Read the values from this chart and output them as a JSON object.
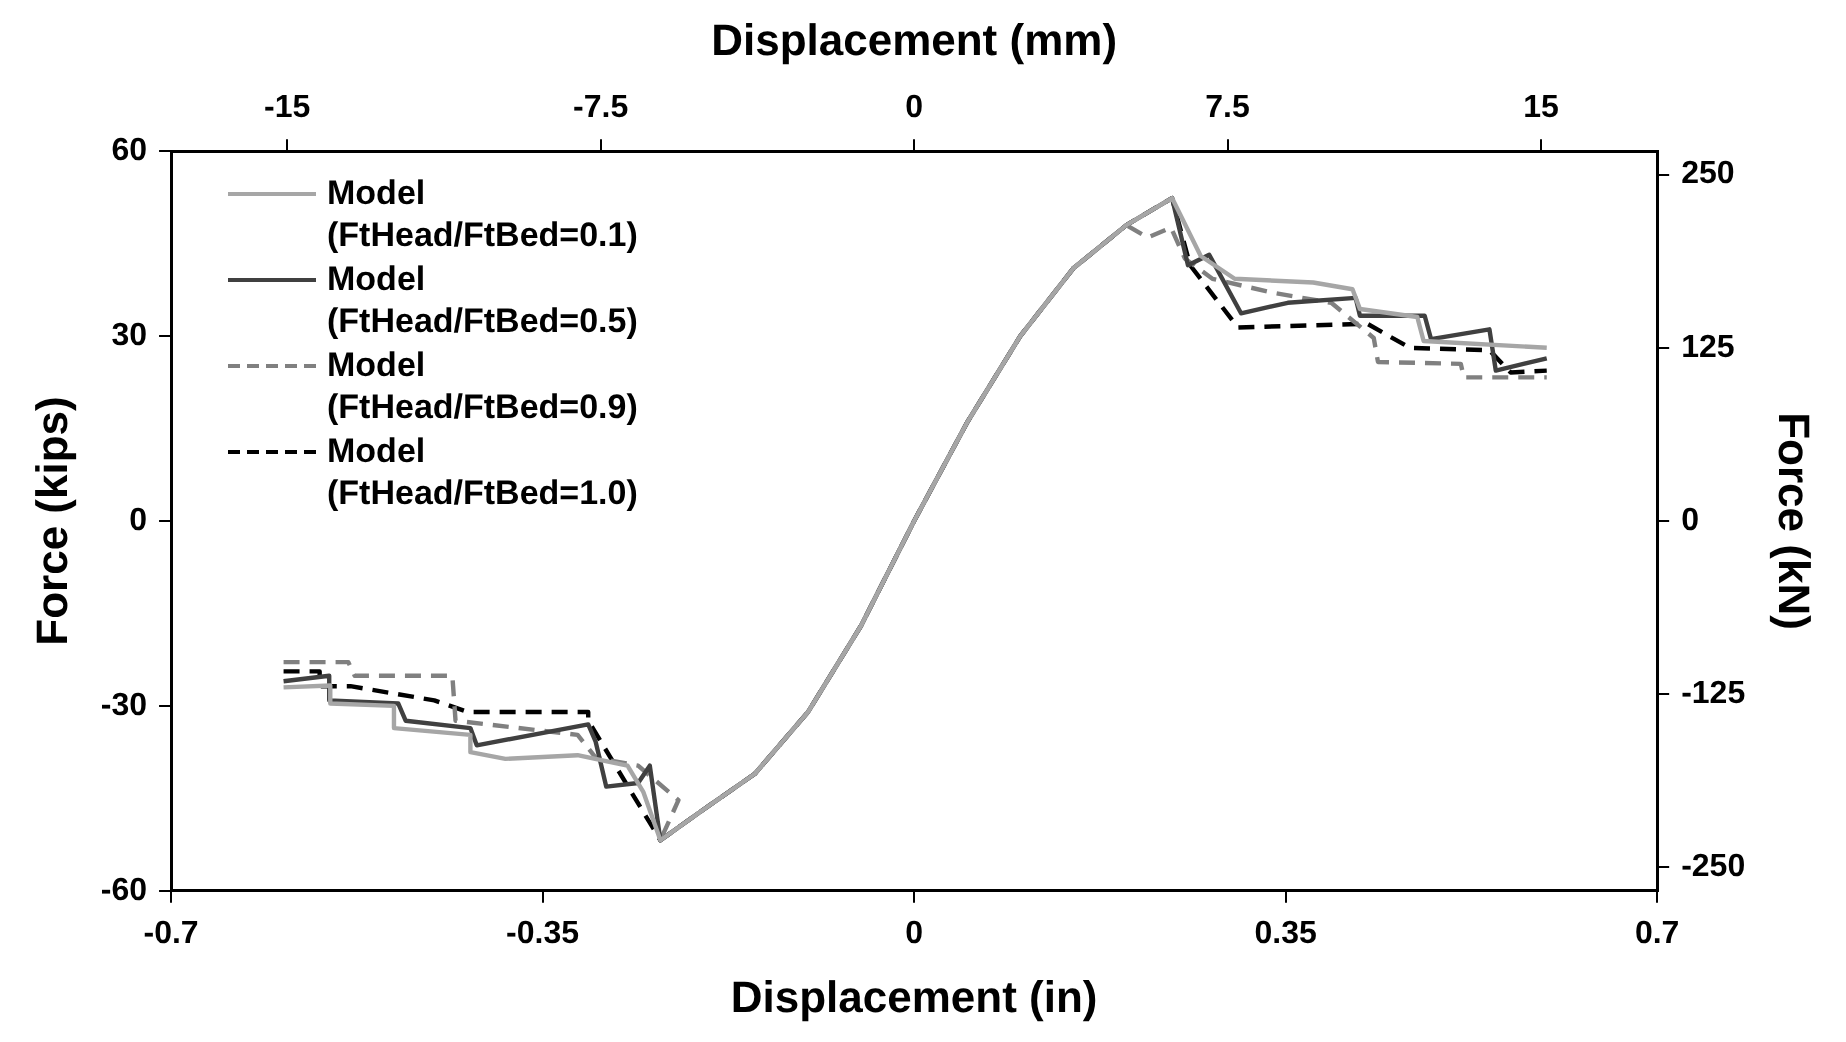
{
  "chart_data": {
    "type": "line",
    "xlabel": "Displacement (in)",
    "ylabel": "Force (kips)",
    "y2label": "Force (kN)",
    "x2label": "Displacement (mm)",
    "xlim": [
      -0.7,
      0.7
    ],
    "xticks": [
      -0.7,
      -0.35,
      0,
      0.35,
      0.7
    ],
    "x2lim": [
      -17.78,
      17.78
    ],
    "x2ticks": [
      -15,
      -7.5,
      0,
      7.5,
      15
    ],
    "ylim": [
      -60,
      60
    ],
    "yticks": [
      -60,
      -30,
      0,
      30,
      60
    ],
    "y2lim": [
      -266.9,
      266.9
    ],
    "y2ticks": [
      -250,
      -125,
      0,
      125,
      250
    ],
    "grid": false,
    "legend": "top left",
    "marker": "none",
    "series": [
      {
        "name": "Model (FtHead/FtBed=0.1)",
        "color": "#a6a6a6",
        "line_style": "solid",
        "x": [
          -0.594,
          -0.55,
          -0.55,
          -0.49,
          -0.49,
          -0.418,
          -0.418,
          -0.385,
          -0.317,
          -0.27,
          -0.255,
          -0.239,
          -0.2,
          -0.15,
          -0.1,
          -0.05,
          0,
          0.05,
          0.1,
          0.15,
          0.2,
          0.243,
          0.27,
          0.302,
          0.376,
          0.413,
          0.42,
          0.474,
          0.48,
          0.596
        ],
        "values": [
          -27,
          -26.7,
          -29.6,
          -30,
          -33.6,
          -34.7,
          -37.5,
          -38.6,
          -38,
          -39.7,
          -44,
          -51.8,
          -47,
          -41,
          -31,
          -17,
          0,
          16,
          30,
          41,
          48,
          52.4,
          43,
          39.3,
          38.7,
          37.6,
          34.4,
          33.1,
          29.2,
          28.1
        ]
      },
      {
        "name": "Model (FtHead/FtBed=0.5)",
        "color": "#404040",
        "line_style": "solid",
        "x": [
          -0.594,
          -0.551,
          -0.551,
          -0.486,
          -0.479,
          -0.418,
          -0.412,
          -0.307,
          -0.3,
          -0.29,
          -0.26,
          -0.249,
          -0.239,
          -0.2,
          -0.15,
          -0.1,
          -0.05,
          0,
          0.05,
          0.1,
          0.15,
          0.2,
          0.243,
          0.258,
          0.278,
          0.308,
          0.352,
          0.416,
          0.42,
          0.481,
          0.487,
          0.542,
          0.548,
          0.596
        ],
        "values": [
          -26,
          -25.1,
          -29.1,
          -29.6,
          -32.4,
          -33.6,
          -36.4,
          -33,
          -35.8,
          -43.1,
          -42.5,
          -39.7,
          -51.8,
          -47,
          -41,
          -31,
          -17,
          0,
          16,
          30,
          41,
          48,
          52.4,
          41.5,
          43.2,
          33.7,
          35.4,
          36.2,
          33.3,
          33.3,
          29.5,
          31.1,
          24.4,
          26.4
        ]
      },
      {
        "name": "Model (FtHead/FtBed=0.9)",
        "color": "#808080",
        "line_style": "dashed",
        "x": [
          -0.594,
          -0.533,
          -0.527,
          -0.435,
          -0.432,
          -0.317,
          -0.3,
          -0.26,
          -0.222,
          -0.239,
          -0.2,
          -0.15,
          -0.1,
          -0.05,
          0,
          0.05,
          0.1,
          0.15,
          0.2,
          0.22,
          0.242,
          0.255,
          0.281,
          0.339,
          0.393,
          0.433,
          0.437,
          0.515,
          0.518,
          0.596
        ],
        "values": [
          -22.9,
          -22.9,
          -25.1,
          -25.1,
          -32.4,
          -34.7,
          -38.4,
          -39.7,
          -45.3,
          -51.8,
          -47,
          -41,
          -31,
          -17,
          0,
          16,
          30,
          41,
          48,
          46,
          47.6,
          42.6,
          39.3,
          37,
          35.4,
          29.7,
          25.8,
          25.5,
          23.3,
          23.3
        ]
      },
      {
        "name": "Model (FtHead/FtBed=1.0)",
        "color": "#000000",
        "line_style": "dashed",
        "x": [
          -0.594,
          -0.56,
          -0.56,
          -0.531,
          -0.452,
          -0.42,
          -0.307,
          -0.307,
          -0.239,
          -0.2,
          -0.15,
          -0.1,
          -0.05,
          0,
          0.05,
          0.1,
          0.15,
          0.2,
          0.243,
          0.26,
          0.305,
          0.427,
          0.467,
          0.542,
          0.562,
          0.596
        ],
        "values": [
          -24.4,
          -24.4,
          -26.8,
          -26.8,
          -29.1,
          -31,
          -31,
          -32.4,
          -51.8,
          -47,
          -41,
          -31,
          -17,
          0,
          16,
          30,
          41,
          48,
          52.4,
          41.5,
          31.4,
          32,
          28.1,
          27.7,
          24.1,
          24.4
        ]
      }
    ]
  }
}
